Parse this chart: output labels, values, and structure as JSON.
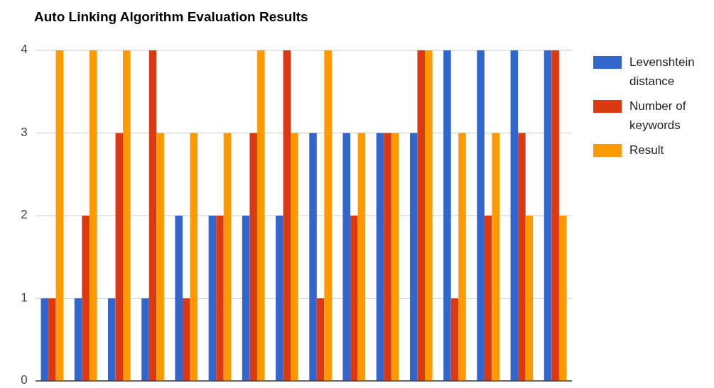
{
  "chart_data": {
    "type": "bar",
    "title": "Auto Linking Algorithm Evaluation Results",
    "categories": [
      null,
      null,
      null,
      null,
      null,
      null,
      null,
      null,
      null,
      null,
      null,
      null,
      null,
      null,
      null,
      null
    ],
    "series": [
      {
        "name": "Levenshtein distance",
        "color": "#3366cc",
        "values": [
          1,
          1,
          1,
          1,
          2,
          2,
          2,
          2,
          3,
          3,
          3,
          3,
          4,
          4,
          4,
          4
        ]
      },
      {
        "name": "Number of keywords",
        "color": "#dc3912",
        "values": [
          1,
          2,
          3,
          4,
          1,
          2,
          3,
          4,
          1,
          2,
          3,
          4,
          1,
          2,
          3,
          4
        ]
      },
      {
        "name": "Result",
        "color": "#ff9900",
        "values": [
          4,
          4,
          4,
          3,
          3,
          3,
          4,
          3,
          4,
          3,
          3,
          4,
          3,
          3,
          2,
          2
        ]
      }
    ],
    "ylim": [
      0,
      4
    ],
    "yticks": [
      0,
      1,
      2,
      3,
      4
    ],
    "grid": "y",
    "legend": "right"
  }
}
